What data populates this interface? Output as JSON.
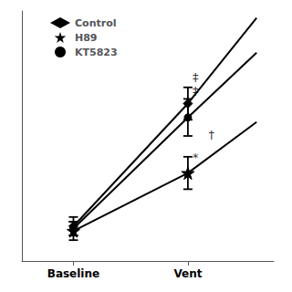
{
  "chart_data": {
    "type": "line",
    "xlim": [
      0.55,
      2.75
    ],
    "xticks": [
      {
        "value": 1,
        "label": "Baseline"
      },
      {
        "value": 2,
        "label": "Vent"
      }
    ],
    "ylim": [
      0.0,
      1.08
    ],
    "yticks": [],
    "tick_labels": "x",
    "grid": false,
    "legend": "upper left",
    "series": [
      {
        "name": "Control",
        "color": "#000000",
        "marker": "diamond",
        "line_style": "solid",
        "x": [
          1,
          2
        ],
        "values": [
          0.15,
          0.68
        ],
        "errors": [
          0.04,
          0.07
        ],
        "extension": {
          "x": 2.6,
          "y": 1.05
        }
      },
      {
        "name": "H89",
        "color": "#000000",
        "marker": "star",
        "line_style": "solid",
        "x": [
          1,
          2
        ],
        "values": [
          0.13,
          0.38
        ],
        "errors": [
          0.04,
          0.07
        ],
        "extension": {
          "x": 2.6,
          "y": 0.6
        }
      },
      {
        "name": "KT5823",
        "color": "#000000",
        "marker": "circle",
        "line_style": "solid",
        "x": [
          1,
          2
        ],
        "values": [
          0.14,
          0.62
        ],
        "errors": [
          0.03,
          0.08
        ],
        "extension": {
          "x": 2.6,
          "y": 0.9
        }
      }
    ],
    "annotations": [
      {
        "text": "‡",
        "x": 2.04,
        "y": 0.77
      },
      {
        "text": "‡",
        "x": 2.04,
        "y": 0.71
      },
      {
        "text": "*",
        "x": 2.04,
        "y": 0.42
      },
      {
        "text": "†",
        "x": 2.18,
        "y": 0.52
      }
    ]
  }
}
